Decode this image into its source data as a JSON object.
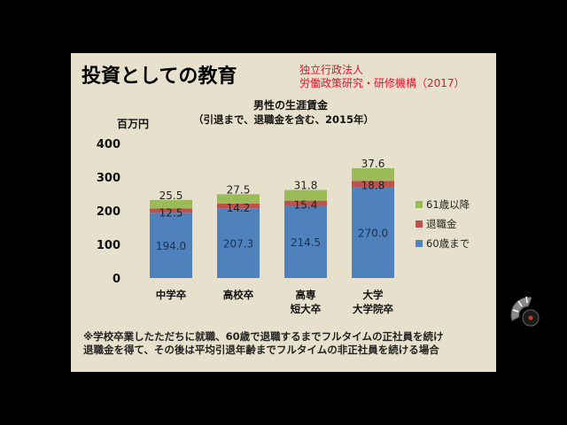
{
  "slide": {
    "title": "投資としての教育",
    "source_line1": "独立行政法人",
    "source_line2": "労働政策研究・研修機構（2017）",
    "footnote_line1": "※学校卒業したただちに就職、60歳で退職するまでフルタイムの正社員を続け",
    "footnote_line2": "退職金を得て、その後は平均引退年齢までフルタイムの非正社員を続ける場合"
  },
  "chart_data": {
    "type": "bar",
    "stacked": true,
    "title": "男性の生涯賃金",
    "subtitle": "（引退まで、退職金を含む、2015年）",
    "ylabel": "百万円",
    "ylim": [
      0,
      400
    ],
    "yticks": [
      0,
      100,
      200,
      300,
      400
    ],
    "grid": false,
    "legend_position": "right",
    "categories": [
      [
        "中学卒"
      ],
      [
        "高校卒"
      ],
      [
        "高専",
        "短大卒"
      ],
      [
        "大学",
        "大学院卒"
      ]
    ],
    "series": [
      {
        "name": "60歳まで",
        "values": [
          194.0,
          207.3,
          214.5,
          270.0
        ],
        "value_labels": [
          "194.0",
          "207.3",
          "214.5",
          "270.0"
        ],
        "color": "#4f81bd"
      },
      {
        "name": "退職金",
        "values": [
          12.5,
          14.2,
          15.4,
          18.8
        ],
        "value_labels": [
          "12.5",
          "14.2",
          "15.4",
          "18.8"
        ],
        "color": "#c0504d"
      },
      {
        "name": "61歳以降",
        "values": [
          25.5,
          27.5,
          31.8,
          37.6
        ],
        "value_labels": [
          "25.5",
          "27.5",
          "31.8",
          "37.6"
        ],
        "color": "#9bbb59"
      }
    ]
  },
  "icons": {
    "nav": "slide-navigation-dial-icon"
  }
}
